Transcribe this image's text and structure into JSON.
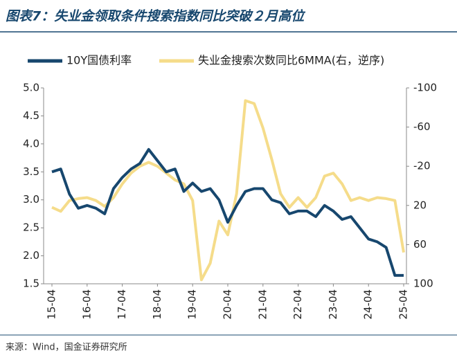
{
  "chart_data": {
    "type": "line",
    "title": "图表7：失业金领取条件搜索指数同比突破２月高位",
    "source": "来源：Wind，国金证券研究所",
    "x": [
      "15-04",
      null,
      null,
      null,
      "16-04",
      null,
      null,
      null,
      "17-04",
      null,
      null,
      null,
      "18-04",
      null,
      null,
      null,
      "19-04",
      null,
      null,
      null,
      "20-04",
      null,
      null,
      null,
      "21-04",
      null,
      null,
      null,
      "22-04",
      null,
      null,
      null,
      "23-04",
      null,
      null,
      null,
      "24-04",
      null,
      null,
      null,
      "25-04"
    ],
    "series": [
      {
        "name": "10Y国债利率",
        "color": "#17476e",
        "values": [
          3.5,
          3.55,
          3.1,
          2.85,
          2.9,
          2.85,
          2.75,
          3.2,
          3.4,
          3.55,
          3.65,
          3.9,
          3.7,
          3.5,
          3.55,
          3.15,
          3.3,
          3.15,
          3.2,
          3.0,
          2.6,
          2.9,
          3.15,
          3.2,
          3.2,
          3.0,
          2.95,
          2.75,
          2.8,
          2.8,
          2.7,
          2.9,
          2.8,
          2.65,
          2.7,
          2.5,
          2.3,
          2.25,
          2.15,
          1.65,
          1.65
        ]
      },
      {
        "name": "失业金搜索次数同比6MMA(右，逆序)",
        "color": "#f5dc8a",
        "axis": "y2",
        "values": [
          22,
          26,
          15,
          13,
          12,
          15,
          21,
          12,
          -2,
          -13,
          -20,
          -24,
          -20,
          -13,
          -6,
          -2,
          15,
          96,
          79,
          36,
          50,
          8,
          -87,
          -84,
          -59,
          -27,
          8,
          22,
          12,
          22,
          12,
          -10,
          -13,
          -2,
          15,
          12,
          15,
          12,
          13,
          15,
          68
        ]
      }
    ],
    "ylim": [
      1.5,
      5.0
    ],
    "yticks": [
      1.5,
      {
        "value": 2,
        "label": "2.0"
      },
      2.5,
      {
        "value": 3,
        "label": "3.0"
      },
      3.5,
      {
        "value": 4,
        "label": "4.0"
      },
      4.5,
      {
        "value": 5,
        "label": "5.0"
      }
    ],
    "y2lim": [
      -100,
      100
    ],
    "y2ticks": [
      -100,
      -60,
      -20,
      20,
      60,
      100
    ],
    "y2_inverted": true,
    "legend": "top"
  }
}
